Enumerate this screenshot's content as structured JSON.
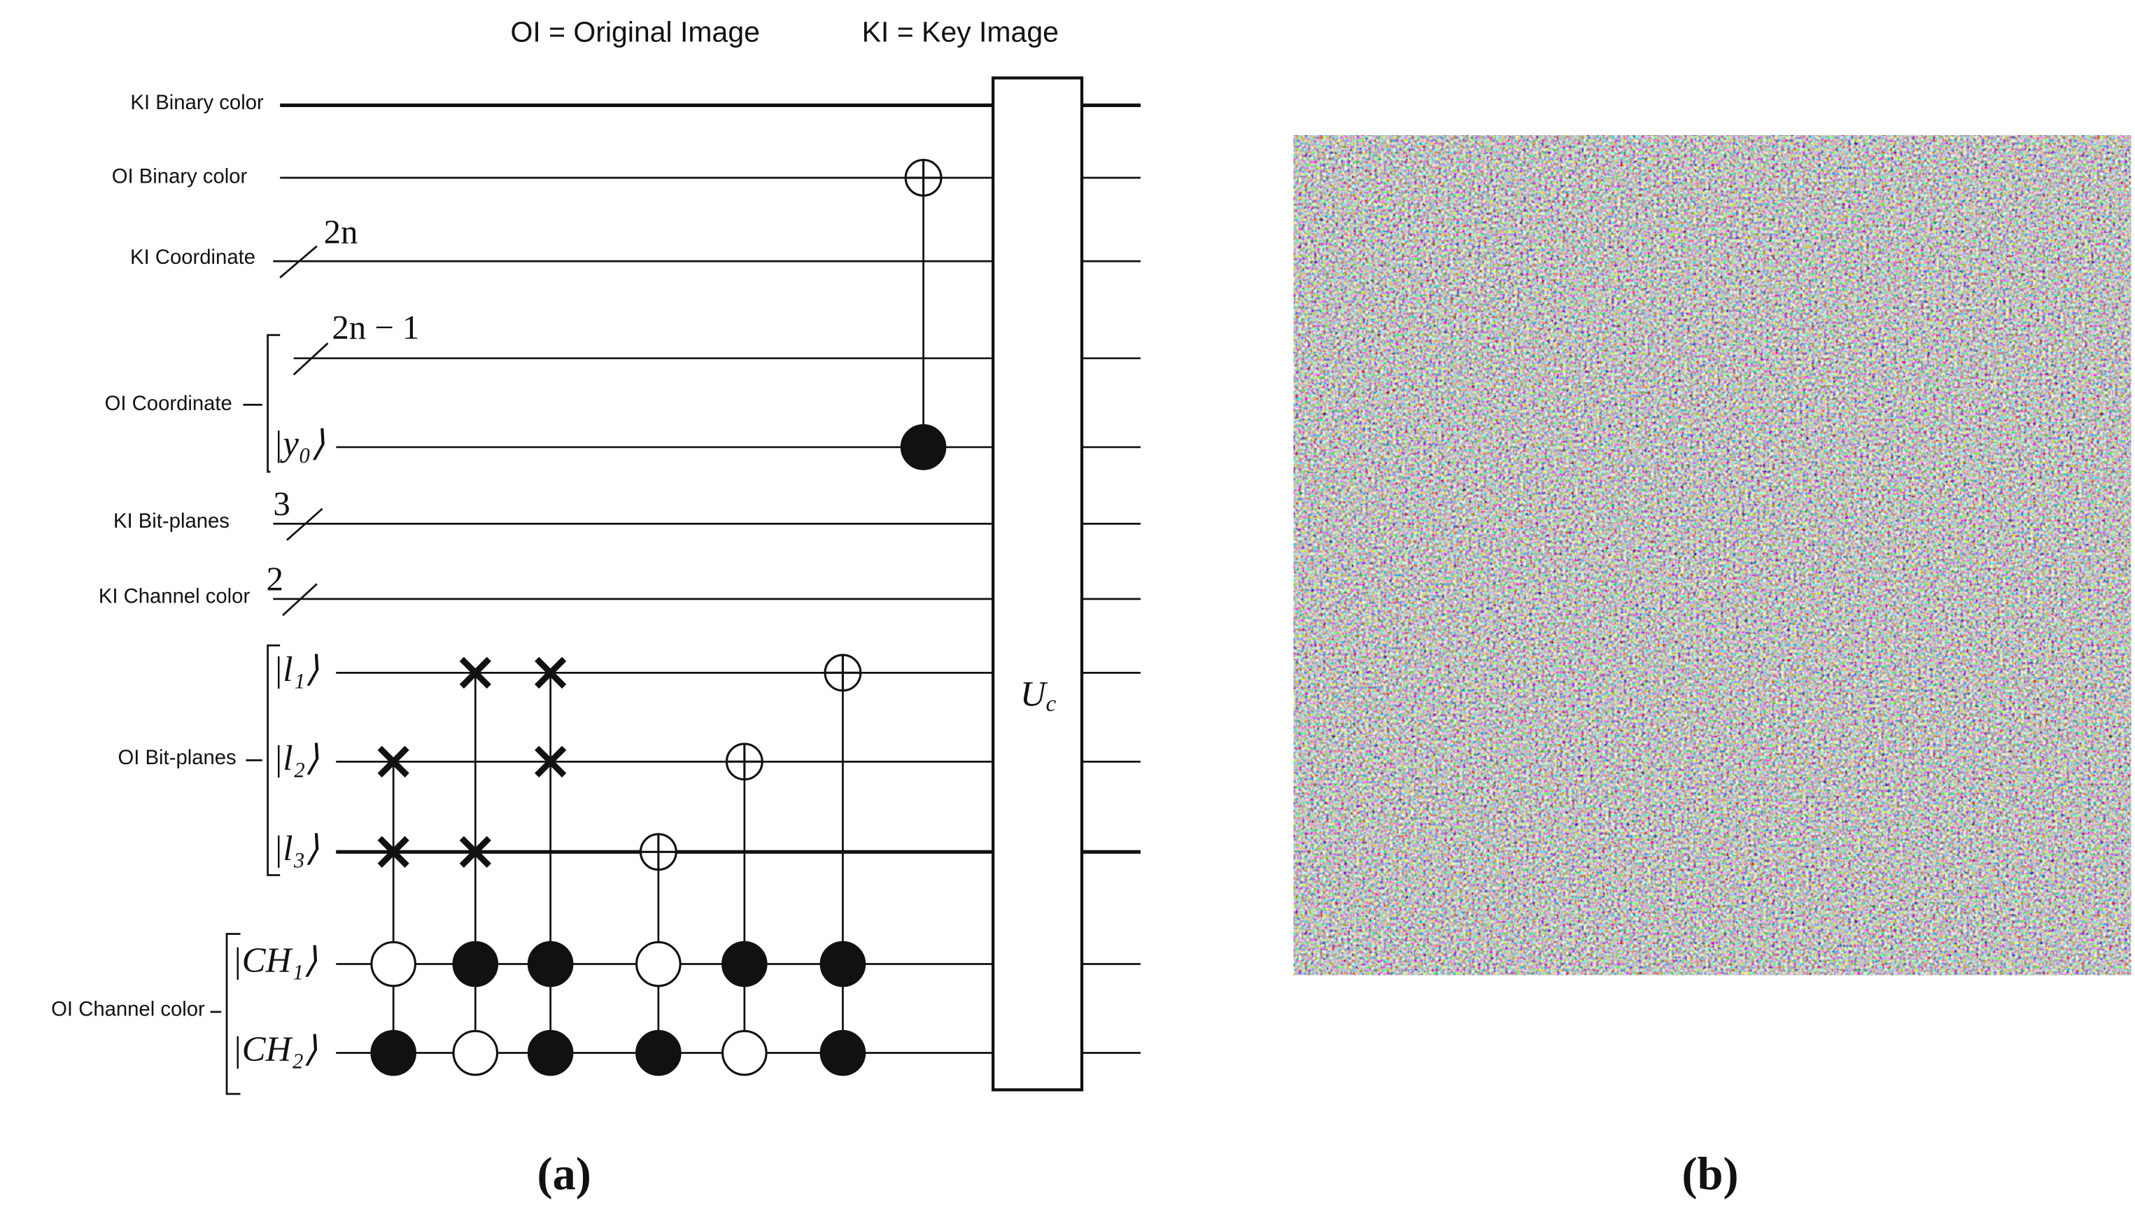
{
  "header": {
    "oi_legend": "OI = Original Image",
    "ki_legend": "KI = Key Image"
  },
  "wires": {
    "ki_binary_color": "KI Binary color",
    "oi_binary_color": "OI Binary color",
    "ki_coordinate": "KI Coordinate",
    "oi_coordinate": "OI Coordinate",
    "ki_bit_planes": "KI Bit-planes",
    "ki_channel_color": "KI Channel color",
    "oi_bit_planes": "OI Bit-planes",
    "oi_channel_color": "OI Channel color"
  },
  "bus_widths": {
    "ki_coordinate": "2n",
    "oi_coordinate": "2n − 1",
    "ki_bit_planes": "3",
    "ki_channel_color": "2"
  },
  "kets": {
    "y0": "|y₀⟩",
    "l1": "|l₁⟩",
    "l2": "|l₂⟩",
    "l3": "|l₃⟩",
    "ch1": "|CH₁⟩",
    "ch2": "|CH₂⟩"
  },
  "gate": {
    "label": "Uc"
  },
  "panels": {
    "a": "(a)",
    "b": "(b)"
  }
}
